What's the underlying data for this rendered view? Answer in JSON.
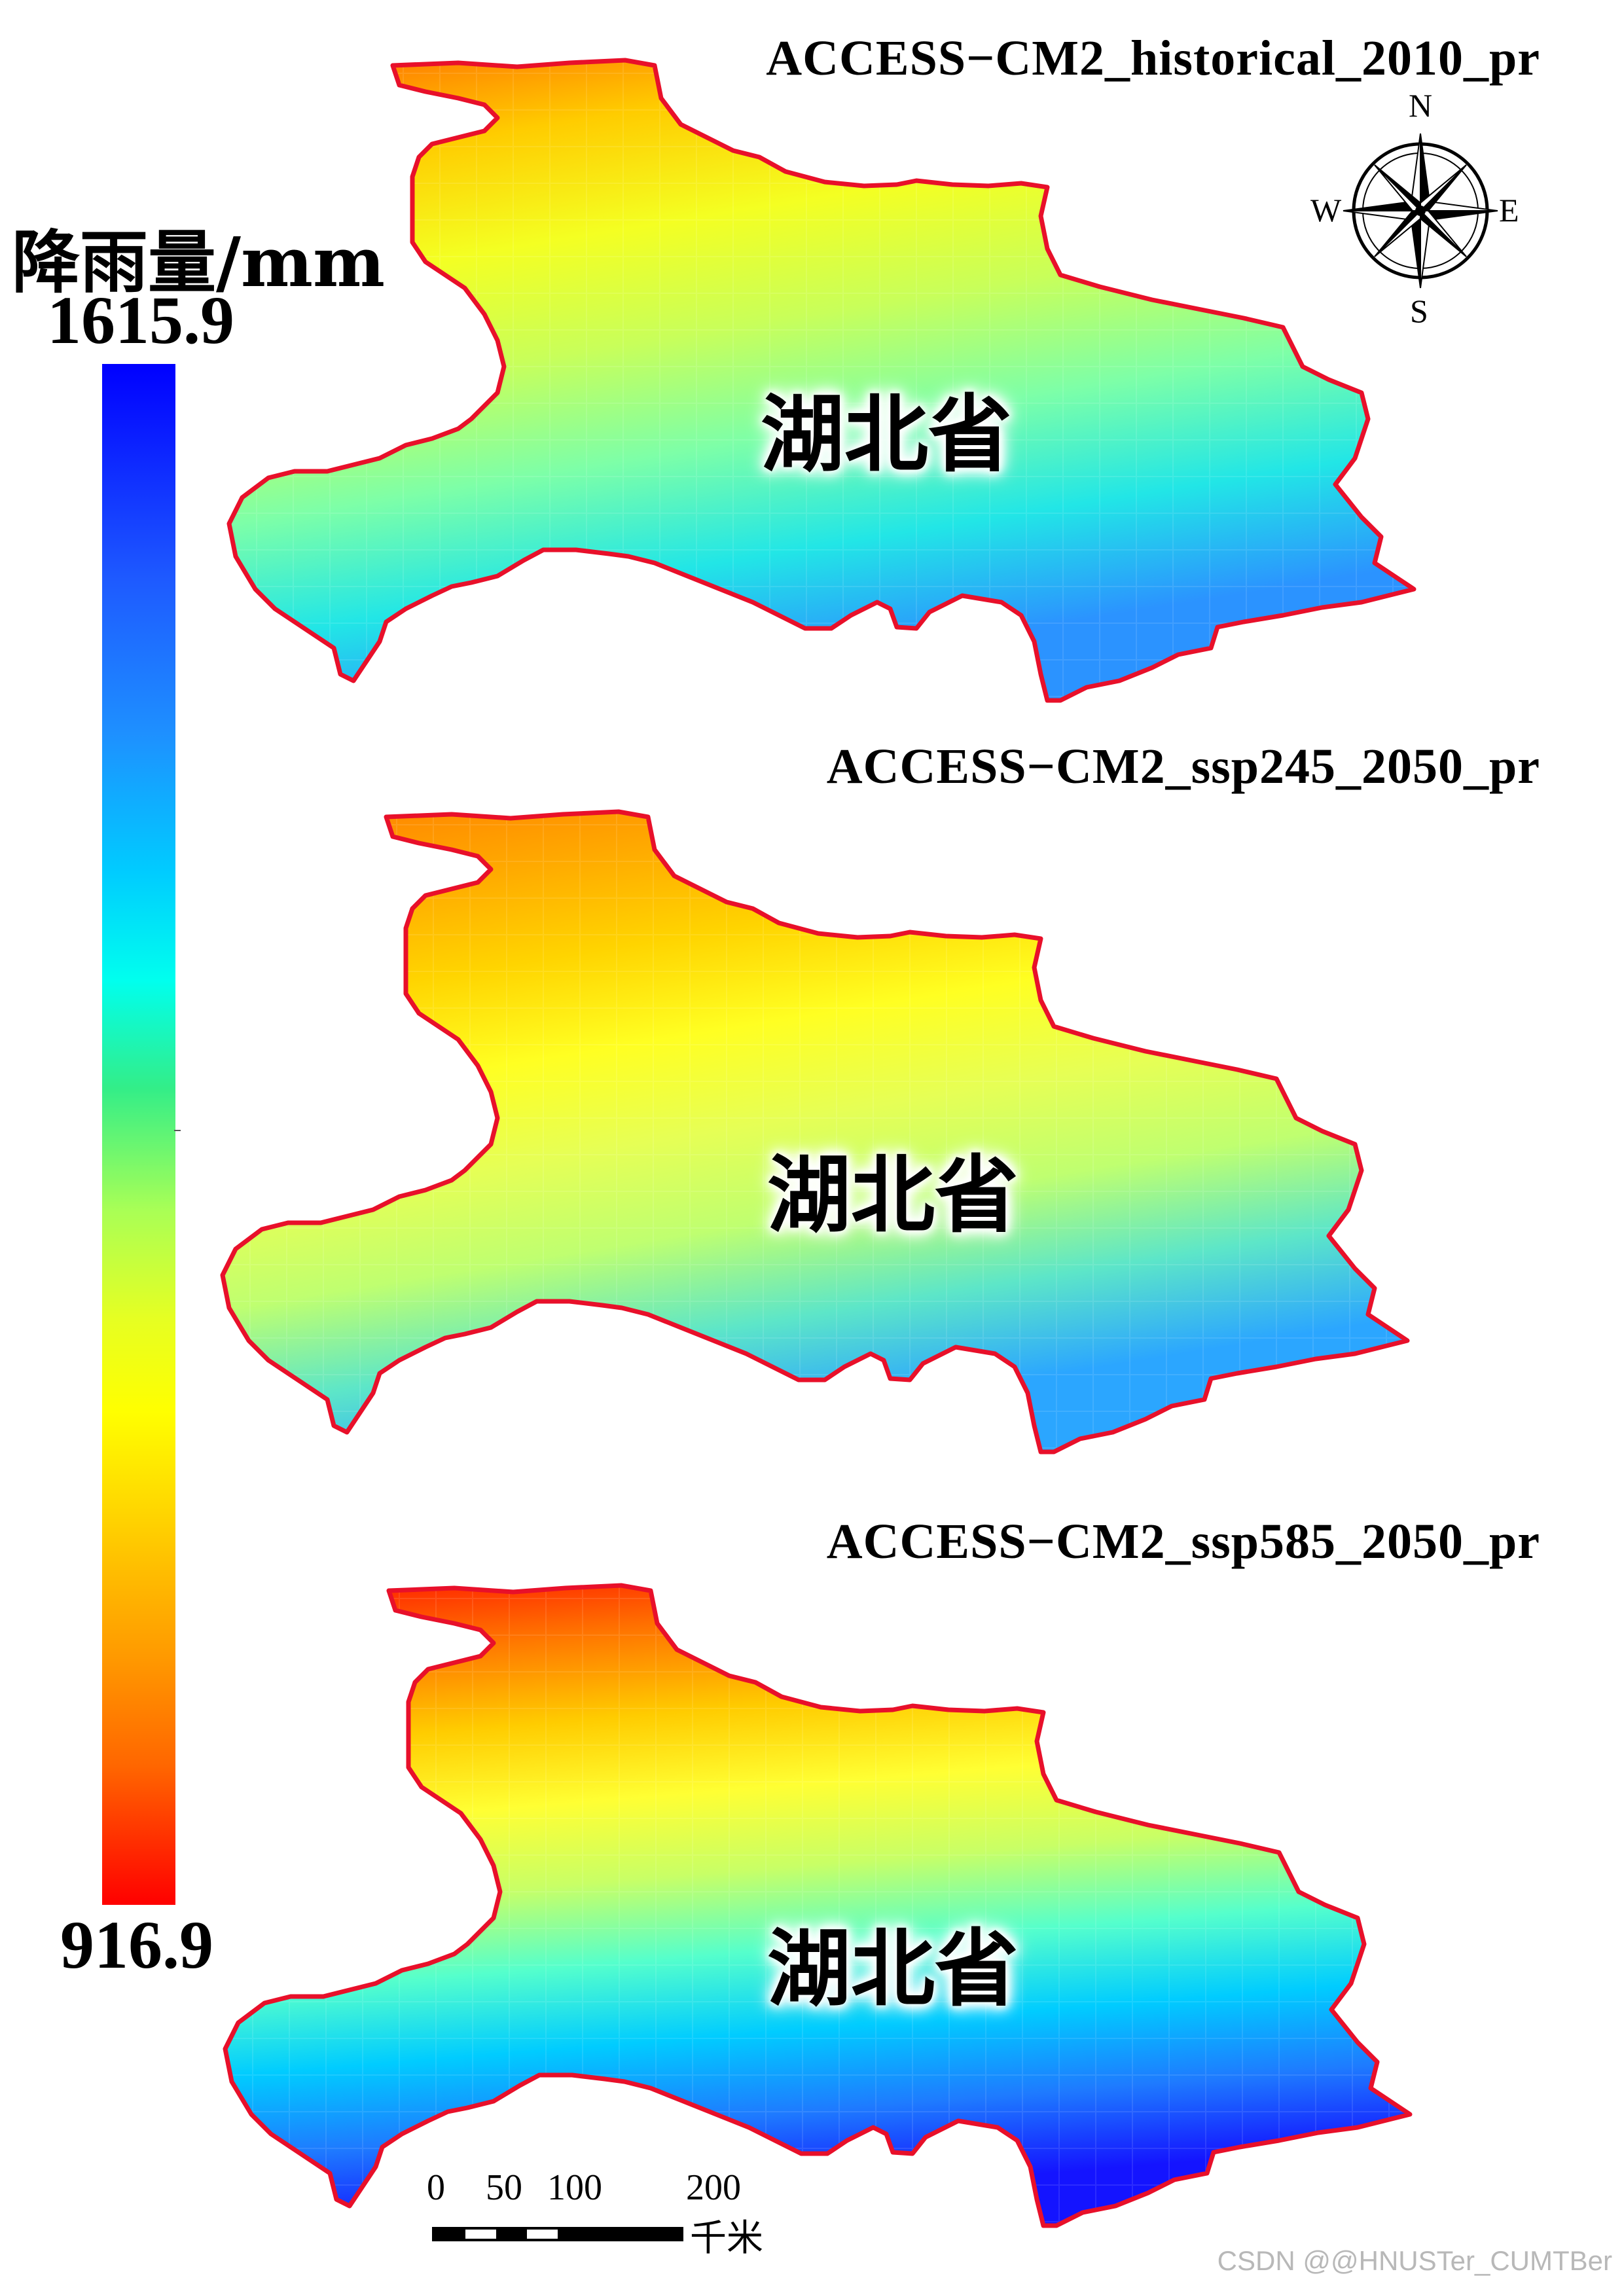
{
  "legend": {
    "title": "降雨量/mm",
    "max_value": "1615.9",
    "min_value": "916.9",
    "colors": [
      "#0000ff",
      "#1e90ff",
      "#00ffee",
      "#aaff55",
      "#ffff00",
      "#ff9900",
      "#ff0000"
    ]
  },
  "panels": [
    {
      "title": "ACCESS−CM2_historical_2010_pr",
      "province_label": "湖北省",
      "gradient": [
        "#ff6a00",
        "#ffcc00",
        "#f4ff22",
        "#c8ff5a",
        "#7dffa8",
        "#22e6e6",
        "#2b93ff"
      ]
    },
    {
      "title": "ACCESS−CM2_ssp245_2050_pr",
      "province_label": "湖北省",
      "gradient": [
        "#ff7f00",
        "#ffa800",
        "#ffd400",
        "#ffff22",
        "#e6ff55",
        "#bfff70",
        "#5de6c8",
        "#2ba6ff"
      ]
    },
    {
      "title": "ACCESS−CM2_ssp585_2050_pr",
      "province_label": "湖北省",
      "gradient": [
        "#ff1a00",
        "#ff7a00",
        "#ffcc00",
        "#ffff33",
        "#c8ff66",
        "#55ffcc",
        "#00ccff",
        "#1e7bff",
        "#1414ff"
      ]
    }
  ],
  "compass": {
    "north": "N",
    "south": "S",
    "east": "E",
    "west": "W"
  },
  "scale_bar": {
    "labels": [
      "0",
      "50",
      "100",
      "200"
    ],
    "unit": "千米"
  },
  "watermark": "CSDN @@HNUSTer_CUMTBer",
  "border_color": "#e8102a"
}
